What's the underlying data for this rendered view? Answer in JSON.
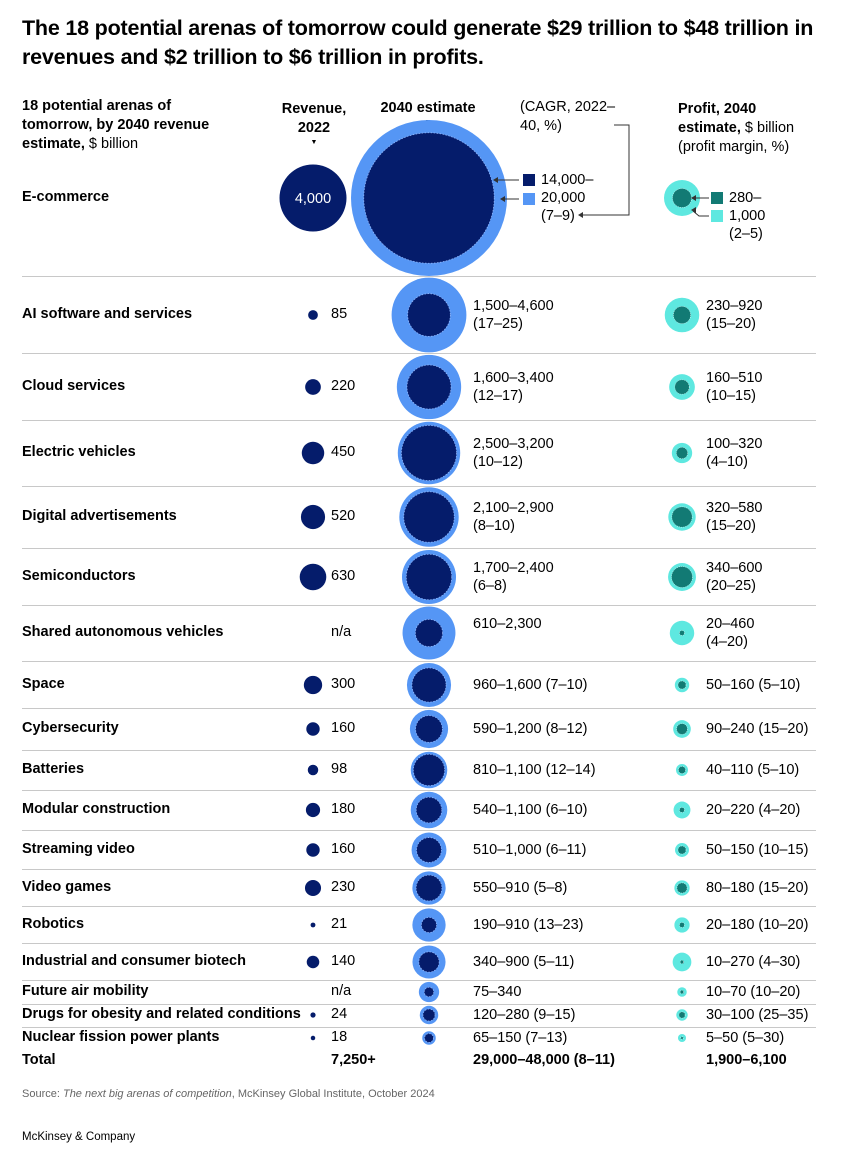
{
  "title": "The 18 potential arenas of tomorrow could generate $29 trillion to $48 trillion in revenues and $2 trillion to $6 trillion in profits.",
  "headers": {
    "arenas_bold": "18 potential arenas of tomorrow, by 2040 revenue estimate,",
    "arenas_unit": "$ billion",
    "revenue": "Revenue, 2022",
    "estimate": "2040 estimate",
    "cagr": "(CAGR, 2022–40, %)",
    "profit_bold": "Profit, 2040 estimate,",
    "profit_unit": "$ billion (profit margin, %)"
  },
  "colors": {
    "dark_navy": "#051c6b",
    "blue": "#5596f5",
    "dark_teal": "#127a74",
    "light_teal": "#5ee8e0",
    "separator": "#c8c8c8"
  },
  "legend": {
    "revenue_low": "14,000–",
    "revenue_high": "20,000",
    "revenue_cagr": "(7–9)",
    "profit_low": "280–",
    "profit_high": "1,000",
    "profit_margin": "(2–5)"
  },
  "chart_data": {
    "type": "table",
    "rows": [
      {
        "arena": "E-commerce",
        "revenue_2022": "4,000",
        "rev_value": 4000,
        "estimate_low": 14000,
        "estimate_high": 20000,
        "estimate_text": "",
        "profit_low": 280,
        "profit_high": 1000,
        "profit_text": ""
      },
      {
        "arena": "AI software and services",
        "revenue_2022": "85",
        "rev_value": 85,
        "estimate_low": 1500,
        "estimate_high": 4600,
        "estimate_text": "1,500–4,600",
        "estimate_text2": "(17–25)",
        "profit_low": 230,
        "profit_high": 920,
        "profit_text": "230–920",
        "profit_text2": "(15–20)"
      },
      {
        "arena": "Cloud services",
        "revenue_2022": "220",
        "rev_value": 220,
        "estimate_low": 1600,
        "estimate_high": 3400,
        "estimate_text": "1,600–3,400",
        "estimate_text2": "(12–17)",
        "profit_low": 160,
        "profit_high": 510,
        "profit_text": "160–510",
        "profit_text2": "(10–15)"
      },
      {
        "arena": "Electric vehicles",
        "revenue_2022": "450",
        "rev_value": 450,
        "estimate_low": 2500,
        "estimate_high": 3200,
        "estimate_text": "2,500–3,200",
        "estimate_text2": "(10–12)",
        "profit_low": 100,
        "profit_high": 320,
        "profit_text": "100–320",
        "profit_text2": "(4–10)"
      },
      {
        "arena": "Digital advertisements",
        "revenue_2022": "520",
        "rev_value": 520,
        "estimate_low": 2100,
        "estimate_high": 2900,
        "estimate_text": "2,100–2,900",
        "estimate_text2": "(8–10)",
        "profit_low": 320,
        "profit_high": 580,
        "profit_text": "320–580",
        "profit_text2": "(15–20)"
      },
      {
        "arena": "Semiconductors",
        "revenue_2022": "630",
        "rev_value": 630,
        "estimate_low": 1700,
        "estimate_high": 2400,
        "estimate_text": "1,700–2,400",
        "estimate_text2": "(6–8)",
        "profit_low": 340,
        "profit_high": 600,
        "profit_text": "340–600",
        "profit_text2": "(20–25)"
      },
      {
        "arena": "Shared autonomous vehicles",
        "revenue_2022": "n/a",
        "rev_value": 0,
        "estimate_low": 610,
        "estimate_high": 2300,
        "estimate_text": "610–2,300",
        "estimate_text2": "",
        "profit_low": 20,
        "profit_high": 460,
        "profit_text": "20–460",
        "profit_text2": "(4–20)"
      },
      {
        "arena": "Space",
        "revenue_2022": "300",
        "rev_value": 300,
        "estimate_low": 960,
        "estimate_high": 1600,
        "estimate_text": "960–1,600 (7–10)",
        "estimate_text2": "",
        "profit_low": 50,
        "profit_high": 160,
        "profit_text": "50–160 (5–10)",
        "profit_text2": ""
      },
      {
        "arena": "Cybersecurity",
        "revenue_2022": "160",
        "rev_value": 160,
        "estimate_low": 590,
        "estimate_high": 1200,
        "estimate_text": "590–1,200 (8–12)",
        "estimate_text2": "",
        "profit_low": 90,
        "profit_high": 240,
        "profit_text": "90–240 (15–20)",
        "profit_text2": ""
      },
      {
        "arena": "Batteries",
        "revenue_2022": "98",
        "rev_value": 98,
        "estimate_low": 810,
        "estimate_high": 1100,
        "estimate_text": "810–1,100 (12–14)",
        "estimate_text2": "",
        "profit_low": 40,
        "profit_high": 110,
        "profit_text": "40–110 (5–10)",
        "profit_text2": ""
      },
      {
        "arena": "Modular construction",
        "revenue_2022": "180",
        "rev_value": 180,
        "estimate_low": 540,
        "estimate_high": 1100,
        "estimate_text": "540–1,100 (6–10)",
        "estimate_text2": "",
        "profit_low": 20,
        "profit_high": 220,
        "profit_text": "20–220 (4–20)",
        "profit_text2": ""
      },
      {
        "arena": "Streaming video",
        "revenue_2022": "160",
        "rev_value": 160,
        "estimate_low": 510,
        "estimate_high": 1000,
        "estimate_text": "510–1,000 (6–11)",
        "estimate_text2": "",
        "profit_low": 50,
        "profit_high": 150,
        "profit_text": "50–150 (10–15)",
        "profit_text2": ""
      },
      {
        "arena": "Video games",
        "revenue_2022": "230",
        "rev_value": 230,
        "estimate_low": 550,
        "estimate_high": 910,
        "estimate_text": "550–910 (5–8)",
        "estimate_text2": "",
        "profit_low": 80,
        "profit_high": 180,
        "profit_text": "80–180 (15–20)",
        "profit_text2": ""
      },
      {
        "arena": "Robotics",
        "revenue_2022": "21",
        "rev_value": 21,
        "estimate_low": 190,
        "estimate_high": 910,
        "estimate_text": "190–910 (13–23)",
        "estimate_text2": "",
        "profit_low": 20,
        "profit_high": 180,
        "profit_text": "20–180 (10–20)",
        "profit_text2": ""
      },
      {
        "arena": "Industrial and consumer biotech",
        "revenue_2022": "140",
        "rev_value": 140,
        "estimate_low": 340,
        "estimate_high": 900,
        "estimate_text": "340–900 (5–11)",
        "estimate_text2": "",
        "profit_low": 10,
        "profit_high": 270,
        "profit_text": "10–270 (4–30)",
        "profit_text2": ""
      },
      {
        "arena": "Future air mobility",
        "revenue_2022": "n/a",
        "rev_value": 0,
        "estimate_low": 75,
        "estimate_high": 340,
        "estimate_text": "75–340",
        "estimate_text2": "",
        "profit_low": 10,
        "profit_high": 70,
        "profit_text": "10–70 (10–20)",
        "profit_text2": ""
      },
      {
        "arena": "Drugs for obesity and related conditions",
        "revenue_2022": "24",
        "rev_value": 24,
        "estimate_low": 120,
        "estimate_high": 280,
        "estimate_text": "120–280 (9–15)",
        "estimate_text2": "",
        "profit_low": 30,
        "profit_high": 100,
        "profit_text": "30–100 (25–35)",
        "profit_text2": ""
      },
      {
        "arena": "Nuclear fission power plants",
        "revenue_2022": "18",
        "rev_value": 18,
        "estimate_low": 65,
        "estimate_high": 150,
        "estimate_text": "65–150 (7–13)",
        "estimate_text2": "",
        "profit_low": 5,
        "profit_high": 50,
        "profit_text": "5–50 (5–30)",
        "profit_text2": ""
      }
    ],
    "total": {
      "label": "Total",
      "revenue_2022": "7,250+",
      "estimate": "29,000–48,000 (8–11)",
      "profit": "1,900–6,100"
    }
  },
  "source": {
    "prefix": "Source: ",
    "title": "The next big arenas of competition",
    "suffix": ", McKinsey Global Institute, October 2024"
  },
  "brand": "McKinsey & Company"
}
